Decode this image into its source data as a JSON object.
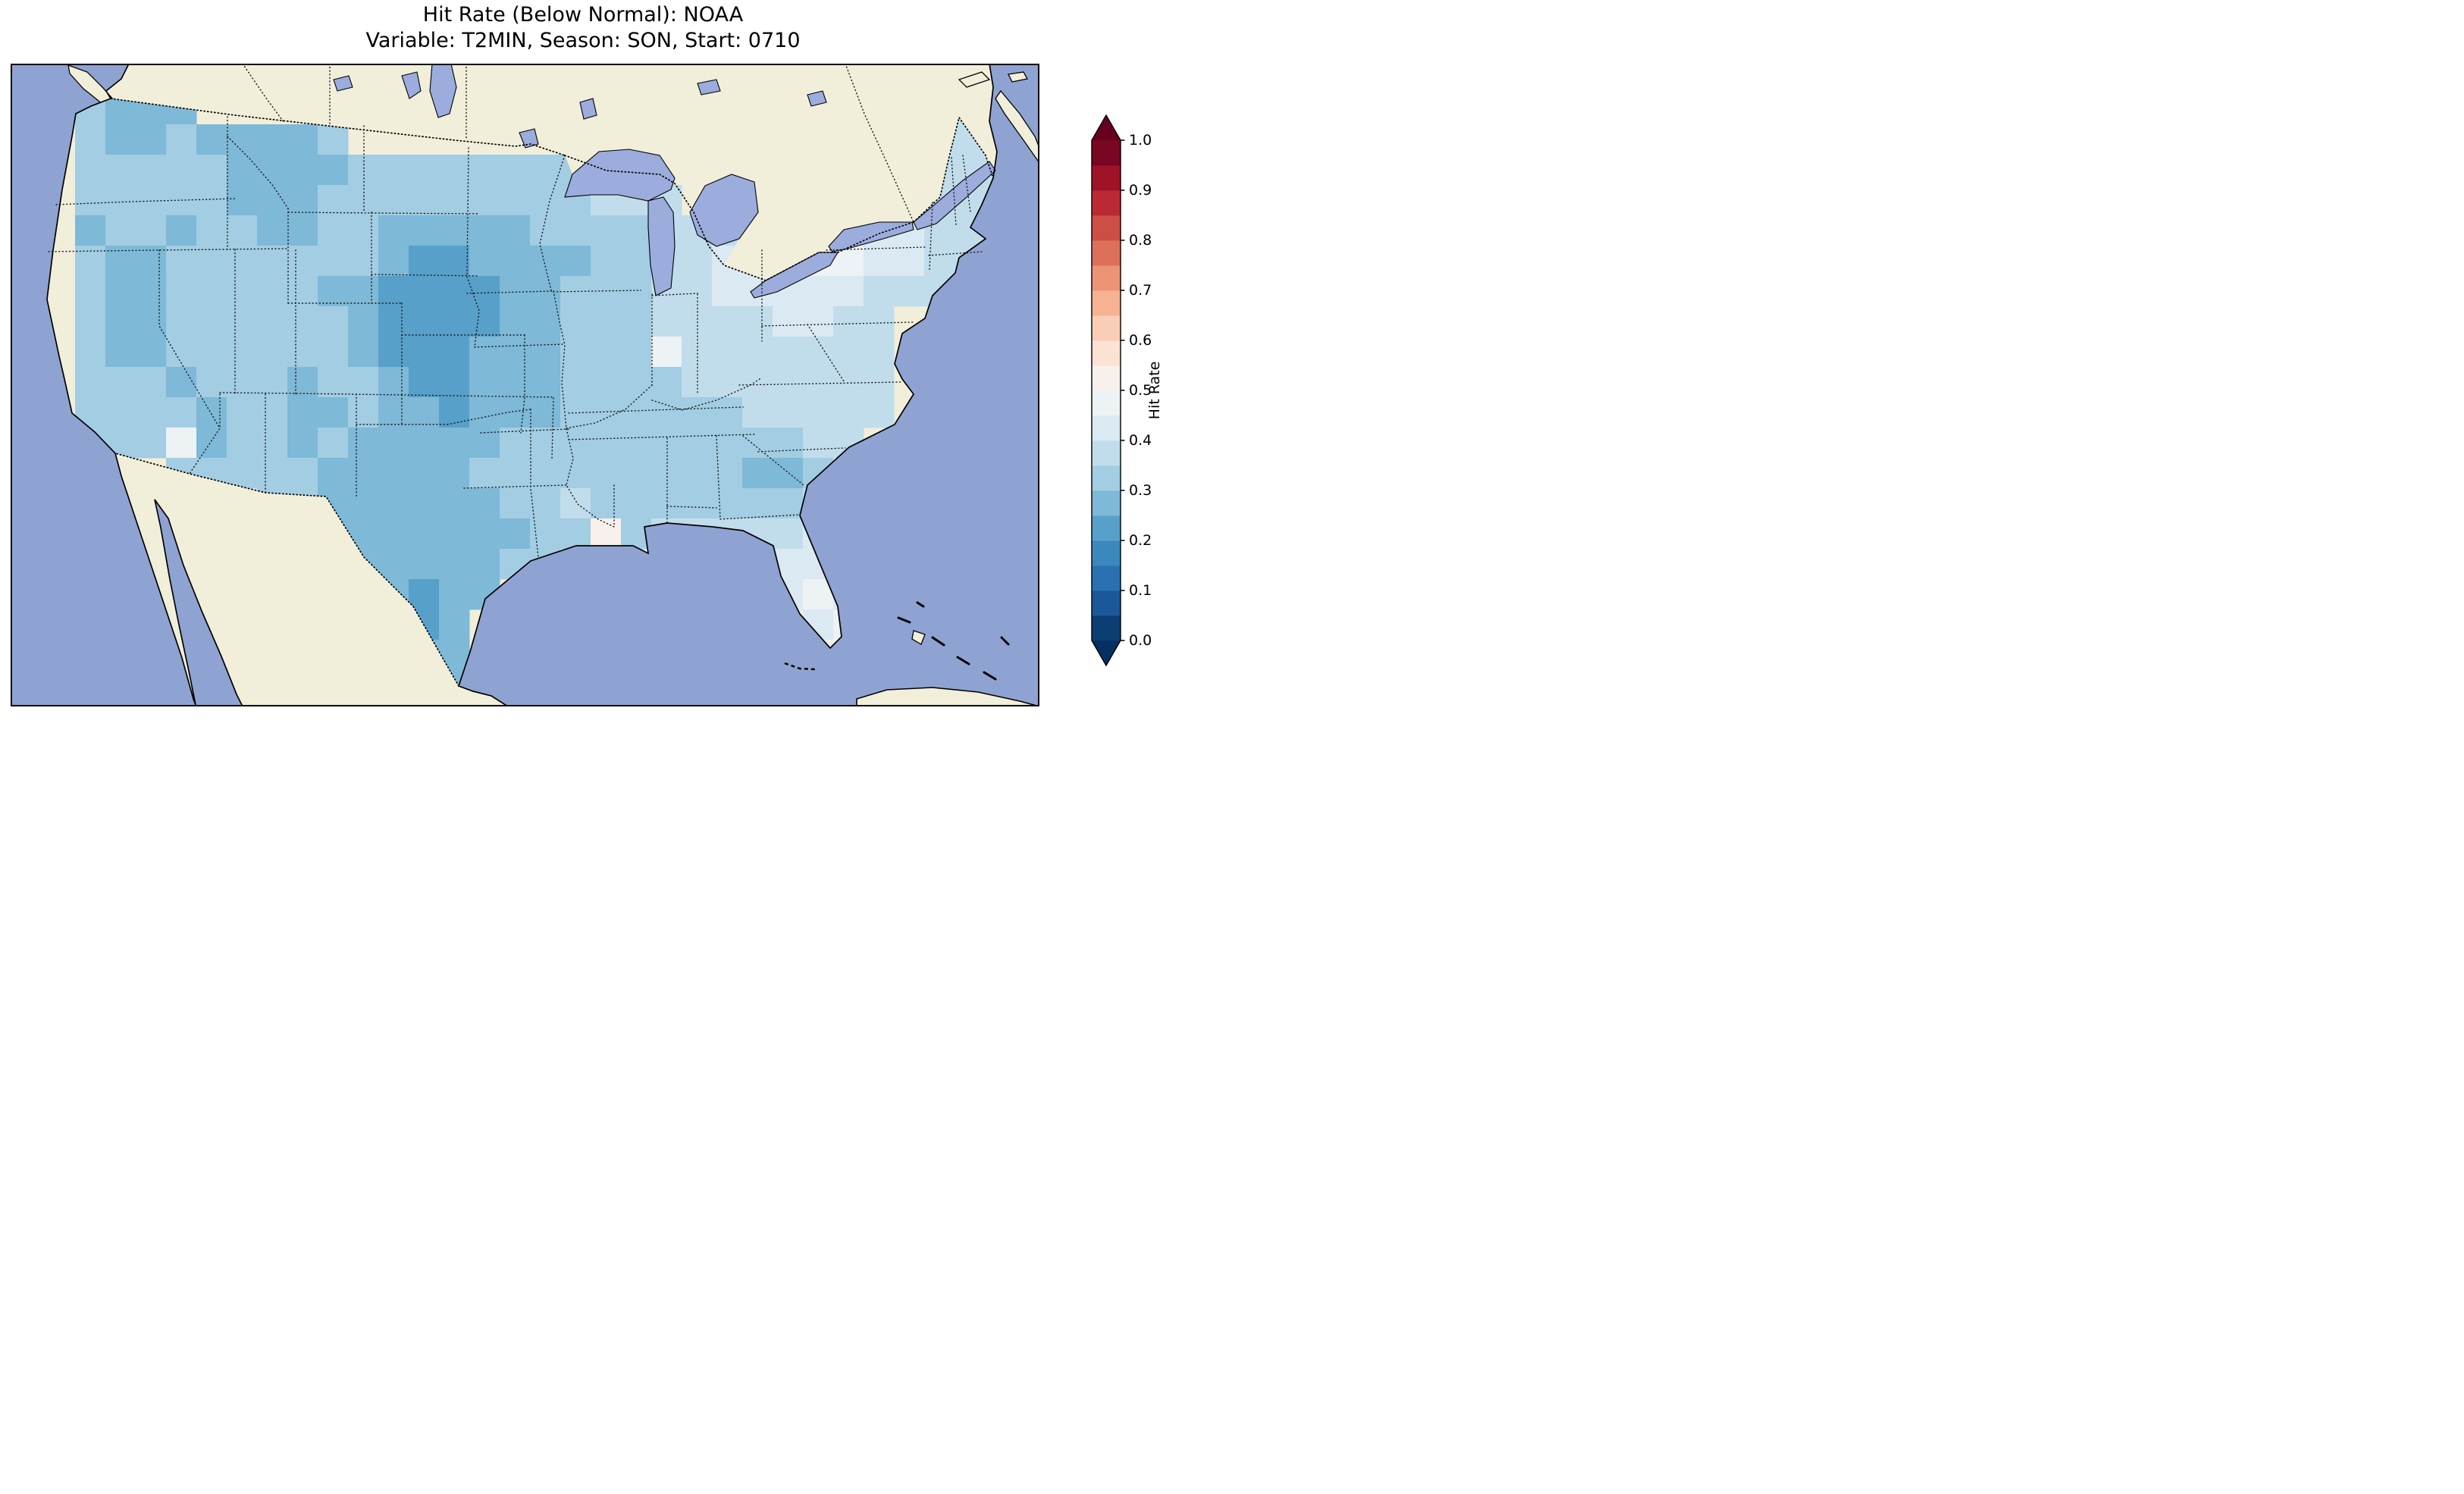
{
  "chart_data": {
    "type": "heatmap",
    "title": "Hit Rate (Below Normal): NOAA",
    "subtitle": "Variable: T2MIN, Season: SON, Start: 0710",
    "source": "NOAA",
    "variable": "T2MIN",
    "season": "SON",
    "start_date": "0710",
    "category": "Below Normal",
    "region": "Continental United States",
    "value_range_displayed": [
      0.2,
      0.55
    ],
    "pattern_summary": "Most of the CONUS shows hit rates of 0.25-0.40 (light blues); lowest values (0.20-0.30, darker blue) over the central Great Plains (Nebraska/Kansas/Oklahoma), Montana-Wyoming and Texas; highest values (0.40-0.55, near white) around the lower Great Lakes / Northeast, and the Florida peninsula.",
    "colorbar": {
      "label": "Hit Rate",
      "orientation": "vertical",
      "tick_labels": [
        "0.0",
        "0.1",
        "0.2",
        "0.3",
        "0.4",
        "0.5",
        "0.6",
        "0.7",
        "0.8",
        "0.9",
        "1.0"
      ],
      "bin_width": 0.05,
      "range": [
        0,
        1
      ],
      "extend": "both",
      "colormap": "RdBu",
      "colors": [
        "#0c3e74",
        "#1a5899",
        "#2a71b2",
        "#3b88bd",
        "#57a0ca",
        "#7eb9d7",
        "#a2cde3",
        "#c1ddec",
        "#dbe9f2",
        "#edf2f5",
        "#f8f0eb",
        "#fbe2d3",
        "#facdb6",
        "#f6b293",
        "#ec9375",
        "#dd705a",
        "#cd4e44",
        "#bb2a33",
        "#9f1228",
        "#790622"
      ],
      "under_color": "#053061",
      "over_color": "#67001f"
    },
    "grid": {
      "cols": 32,
      "rows": 20,
      "cell_encoding": "Each character is one grid cell (west->east per row, north->south rows). A hex digit d means hit-rate bin [d*0.05,(d+1)*0.05); '.' means outside the CONUS data domain.",
      "rows_data": [
        [
          ".6555...",
          "........",
          "........",
          "......77"
        ],
        [
          ".6556555",
          "56......",
          "........",
          ".....777"
        ],
        [
          ".6666655",
          "55666666",
          "66......",
          ".....777"
        ],
        [
          ".6666655",
          "56666666",
          "66777...",
          "..777777"
        ],
        [
          ".5665665",
          "56655555",
          "6666777.",
          "89a88777"
        ],
        [
          ".6556666",
          "66654455",
          "55667788",
          "8998877."
        ],
        [
          ".6556666",
          "65544445",
          "56667788",
          "888777.."
        ],
        [
          ".6556666",
          "66544445",
          "56667777",
          "8877...."
        ],
        [
          ".6556666",
          "66544455",
          "56669777",
          "7777...."
        ],
        [
          ".6665666",
          "56654455",
          "56666777",
          "7777...."
        ],
        [
          ".6666566",
          "55655455",
          "56666667",
          "7777...."
        ],
        [
          ".6669566",
          "56555556",
          "66666666",
          "677....."
        ],
        [
          "....6666",
          "65555566",
          "66666665",
          "56......"
        ],
        [
          ".......6",
          "65555556",
          "67666666",
          "677....."
        ],
        [
          "........",
          ".5555555",
          "66a67777",
          "788....."
        ],
        [
          "........",
          "..555556",
          "677.....",
          "888....."
        ],
        [
          "........",
          "...5455.",
          "........",
          "898....."
        ],
        [
          "........",
          "...545..",
          "........",
          ".89....."
        ],
        [
          "........",
          "....55..",
          "........",
          ".a9....."
        ],
        [
          "........",
          "....55..",
          "........",
          "........"
        ]
      ]
    }
  },
  "map": {
    "ocean_color": "#8fa3d2",
    "land_color": "#f1eeda",
    "lake_color": "#9bacdd",
    "coastline_color": "#000000",
    "border_style": "dotted"
  }
}
